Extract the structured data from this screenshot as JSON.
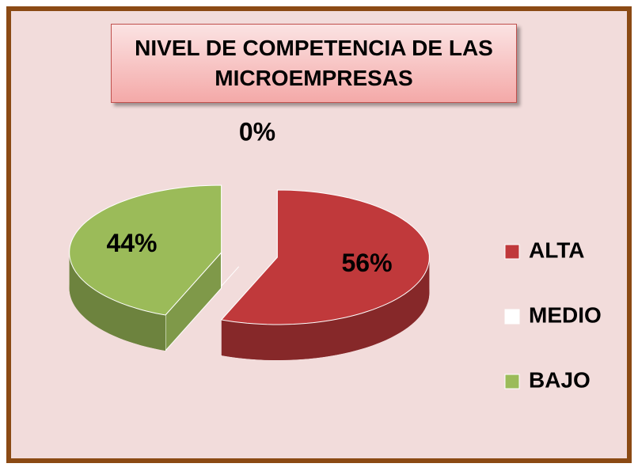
{
  "chart_data": {
    "type": "pie",
    "title": "NIVEL DE COMPETENCIA DE LAS MICROEMPRESAS",
    "categories": [
      "ALTA",
      "MEDIO",
      "BAJO"
    ],
    "values": [
      56,
      0,
      44
    ],
    "value_labels": [
      "56%",
      "0%",
      "44%"
    ],
    "colors": [
      "#c0393b",
      "#ffffff",
      "#9bbb59"
    ],
    "legend": "right"
  }
}
